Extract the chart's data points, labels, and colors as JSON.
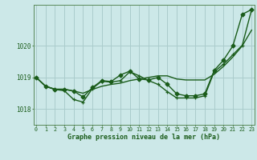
{
  "title": "Graphe pression niveau de la mer (hPa)",
  "bg_color": "#cce8e8",
  "grid_color": "#aacccc",
  "line_color": "#1a5c1a",
  "x_ticks": [
    0,
    1,
    2,
    3,
    4,
    5,
    6,
    7,
    8,
    9,
    10,
    11,
    12,
    13,
    14,
    15,
    16,
    17,
    18,
    19,
    20,
    21,
    22,
    23
  ],
  "y_ticks": [
    1018,
    1019,
    1020
  ],
  "ylim": [
    1017.5,
    1021.3
  ],
  "xlim": [
    -0.3,
    23.3
  ],
  "series": [
    {
      "x": [
        0,
        1,
        2,
        3,
        4,
        5,
        6,
        7,
        8,
        9,
        10,
        11,
        12,
        13,
        14,
        15,
        16,
        17,
        18,
        19,
        20,
        21,
        22,
        23
      ],
      "y": [
        1019.0,
        1018.72,
        1018.63,
        1018.63,
        1018.57,
        1018.5,
        1018.62,
        1018.72,
        1018.78,
        1018.82,
        1018.9,
        1018.95,
        1019.0,
        1019.05,
        1019.05,
        1018.95,
        1018.92,
        1018.92,
        1018.92,
        1019.1,
        1019.35,
        1019.65,
        1020.0,
        1020.5
      ],
      "marker": null,
      "lw": 1.0
    },
    {
      "x": [
        0,
        1,
        2,
        3,
        4,
        5,
        6,
        7,
        8,
        9,
        10,
        11,
        12,
        13,
        14,
        15,
        16,
        17,
        18,
        19,
        20,
        21,
        22,
        23
      ],
      "y": [
        1019.0,
        1018.72,
        1018.62,
        1018.62,
        1018.57,
        1018.38,
        1018.68,
        1018.9,
        1018.87,
        1019.08,
        1019.2,
        1018.95,
        1018.92,
        1019.0,
        1018.78,
        1018.48,
        1018.42,
        1018.42,
        1018.48,
        1019.22,
        1019.55,
        1020.0,
        1021.0,
        1021.15
      ],
      "marker": "D",
      "markersize": 2.5,
      "lw": 1.0
    },
    {
      "x": [
        0,
        1,
        2,
        3,
        4,
        5,
        6,
        7,
        8,
        9,
        10,
        11,
        12,
        13,
        14,
        15,
        16,
        17,
        18,
        19,
        20,
        21,
        22,
        23
      ],
      "y": [
        1019.0,
        1018.72,
        1018.62,
        1018.58,
        1018.3,
        1018.22,
        1018.65,
        1018.88,
        1018.85,
        1018.9,
        1019.18,
        1019.05,
        1018.9,
        1018.78,
        1018.55,
        1018.35,
        1018.35,
        1018.35,
        1018.42,
        1019.18,
        1019.42,
        1019.72,
        1020.02,
        1021.15
      ],
      "marker": "+",
      "markersize": 3.5,
      "lw": 1.0
    }
  ]
}
